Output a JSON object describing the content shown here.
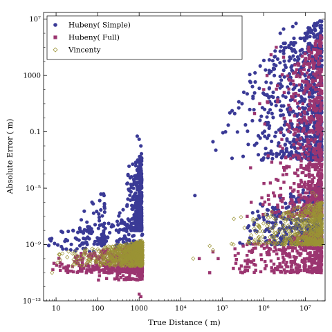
{
  "chart_data": {
    "type": "scatter",
    "title": "",
    "xlabel": "True Distance ( m)",
    "ylabel": "Absolute Error ( m)",
    "xscale": "log",
    "yscale": "log",
    "xlim": [
      5,
      30000000
    ],
    "ylim": [
      1e-13,
      30000000
    ],
    "grid": false,
    "legend_position": "top-left",
    "x_ticks": [
      {
        "value": 10,
        "label": "10"
      },
      {
        "value": 100,
        "label": "100"
      },
      {
        "value": 1000,
        "label": "1000"
      },
      {
        "value": 10000,
        "label": "10⁴"
      },
      {
        "value": 100000,
        "label": "10⁵"
      },
      {
        "value": 1000000,
        "label": "10⁶"
      },
      {
        "value": 10000000,
        "label": "10⁷"
      }
    ],
    "y_ticks": [
      {
        "value": 1e-13,
        "label": "10⁻¹³"
      },
      {
        "value": 1e-09,
        "label": "10⁻⁹"
      },
      {
        "value": 1e-05,
        "label": "10⁻⁵"
      },
      {
        "value": 0.1,
        "label": "0.1"
      },
      {
        "value": 1000,
        "label": "1000"
      },
      {
        "value": 10000000,
        "label": "10⁷"
      }
    ],
    "series": [
      {
        "name": "Hubeny( Simple)",
        "marker": "circle",
        "color": "#3a3a96",
        "clusters": [
          {
            "x_range": [
              6,
              1200
            ],
            "y_range": [
              3e-10,
              1e-07
            ],
            "trend": [
              0.9,
              1.0
            ],
            "count": 140
          },
          {
            "x_range": [
              150,
              1150
            ],
            "y_range": [
              1e-08,
              0.003
            ],
            "trend": [
              0.2,
              1.8
            ],
            "count": 420
          },
          {
            "x_range": [
              30,
              150
            ],
            "y_range": [
              1e-09,
              1e-05
            ],
            "trend": [
              0.6,
              1.5
            ],
            "count": 60
          },
          {
            "x_range": [
              200000,
              25000000
            ],
            "y_range": [
              1e-09,
              2e-05
            ],
            "trend": [
              0.5,
              1.5
            ],
            "count": 380
          },
          {
            "x_range": [
              80000,
              25000000
            ],
            "y_range": [
              0.001,
              10000000.0
            ],
            "trend": [
              0.4,
              1.4
            ],
            "count": 700
          }
        ],
        "points": [
          [
            22000,
            3e-06
          ],
          [
            900,
            0.05
          ],
          [
            1000,
            0.03
          ],
          [
            1100,
            0.01
          ],
          [
            60000,
            0.02
          ],
          [
            70000,
            0.005
          ],
          [
            120000,
            0.1
          ],
          [
            140000,
            0.3
          ],
          [
            200000,
            2
          ],
          [
            300000,
            10
          ],
          [
            250000,
            5
          ],
          [
            400000,
            50
          ],
          [
            1500000,
            300
          ],
          [
            1800000,
            1000
          ],
          [
            2500000,
            1000000.0
          ],
          [
            3000000,
            2000000.0
          ],
          [
            4000000,
            100000.0
          ],
          [
            5000000,
            3000000.0
          ],
          [
            6000000,
            5000000.0
          ]
        ]
      },
      {
        "name": "Hubeny( Full)",
        "marker": "square",
        "color": "#9b3570",
        "clusters": [
          {
            "x_range": [
              6,
              1200
            ],
            "y_range": [
              1e-11,
              1e-09
            ],
            "trend": [
              0.5,
              1.3
            ],
            "count": 380
          },
          {
            "x_range": [
              30,
              1200
            ],
            "y_range": [
              3e-12,
              1e-09
            ],
            "trend": [
              0.4,
              1.2
            ],
            "count": 160
          },
          {
            "x_range": [
              100000,
              25000000
            ],
            "y_range": [
              1e-11,
              1e-08
            ],
            "trend": [
              0.5,
              1.3
            ],
            "count": 380
          },
          {
            "x_range": [
              300000,
              25000000
            ],
            "y_range": [
              1e-07,
              1000000.0
            ],
            "trend": [
              0.3,
              1.6
            ],
            "count": 700
          }
        ],
        "points": [
          [
            1000,
            3e-13
          ],
          [
            1100,
            2e-13
          ],
          [
            28000,
            1e-10
          ],
          [
            60000,
            3e-10
          ],
          [
            50000,
            1e-11
          ],
          [
            80000,
            1e-10
          ],
          [
            400000,
            1e-07
          ],
          [
            500000,
            1e-06
          ],
          [
            1000000,
            100
          ],
          [
            1200000,
            1000
          ],
          [
            1500000,
            30000.0
          ],
          [
            2000000,
            100000.0
          ],
          [
            800000,
            10
          ],
          [
            600000,
            2
          ],
          [
            3000000,
            20000.0
          ]
        ]
      },
      {
        "name": "Vincenty",
        "marker": "diamond-open",
        "color": "#9a9335",
        "clusters": [
          {
            "x_range": [
              6,
              1200
            ],
            "y_range": [
              3e-11,
              1.5e-09
            ],
            "trend": [
              0.4,
              1.2
            ],
            "count": 520
          },
          {
            "x_range": [
              200,
              1200
            ],
            "y_range": [
              1e-10,
              2e-09
            ],
            "trend": [
              0.5,
              1.4
            ],
            "count": 220
          },
          {
            "x_range": [
              60000,
              25000000
            ],
            "y_range": [
              1e-09,
              1e-06
            ],
            "trend": [
              0.3,
              1.7
            ],
            "count": 620
          }
        ],
        "points": [
          [
            8,
            1e-11
          ],
          [
            20000,
            1e-10
          ],
          [
            50000,
            8e-10
          ],
          [
            60000,
            4e-10
          ],
          [
            15000000,
            5e-06
          ],
          [
            18000000,
            3e-06
          ],
          [
            20000000,
            1e-06
          ]
        ]
      }
    ]
  }
}
